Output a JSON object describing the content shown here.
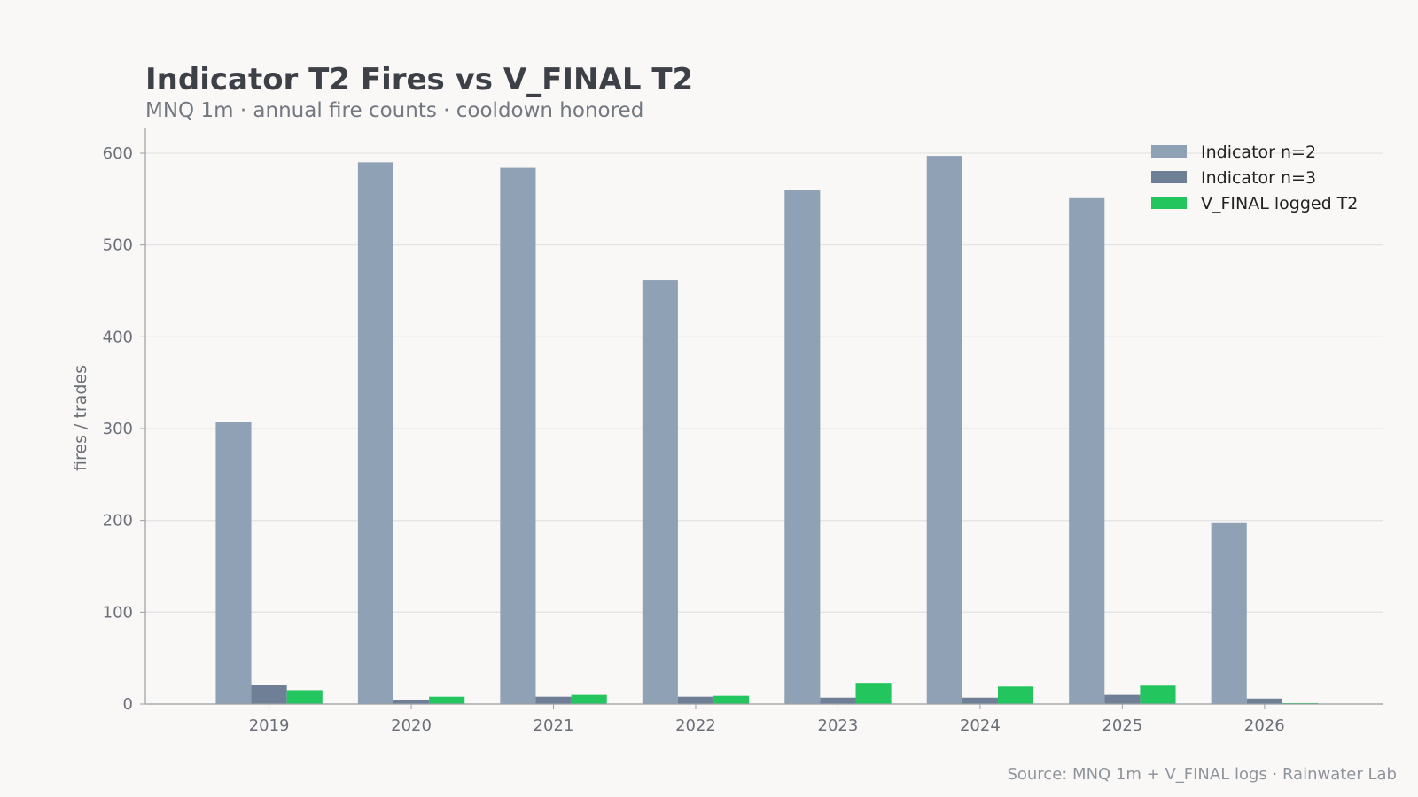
{
  "header": {
    "title": "Indicator T2 Fires vs V_FINAL T2",
    "subtitle": "MNQ 1m · annual fire counts · cooldown honored"
  },
  "footer": {
    "source": "Source: MNQ 1m + V_FINAL logs · Rainwater Lab"
  },
  "chart_data": {
    "type": "bar",
    "title": "Indicator T2 Fires vs V_FINAL T2",
    "subtitle": "MNQ 1m · annual fire counts · cooldown honored",
    "xlabel": "",
    "ylabel": "fires / trades",
    "categories": [
      "2019",
      "2020",
      "2021",
      "2022",
      "2023",
      "2024",
      "2025",
      "2026"
    ],
    "ylim": [
      0,
      627
    ],
    "yticks": [
      0,
      100,
      200,
      300,
      400,
      500,
      600
    ],
    "grid": true,
    "legend": "top-right",
    "series": [
      {
        "name": "Indicator n=2",
        "color": "#8fa1b4",
        "values": [
          307,
          590,
          584,
          462,
          560,
          597,
          551,
          197
        ]
      },
      {
        "name": "Indicator n=3",
        "color": "#6e7f96",
        "values": [
          21,
          4,
          8,
          8,
          7,
          7,
          10,
          6
        ]
      },
      {
        "name": "V_FINAL logged T2",
        "color": "#22c55e",
        "values": [
          15,
          8,
          10,
          9,
          23,
          19,
          20,
          1
        ]
      }
    ]
  }
}
